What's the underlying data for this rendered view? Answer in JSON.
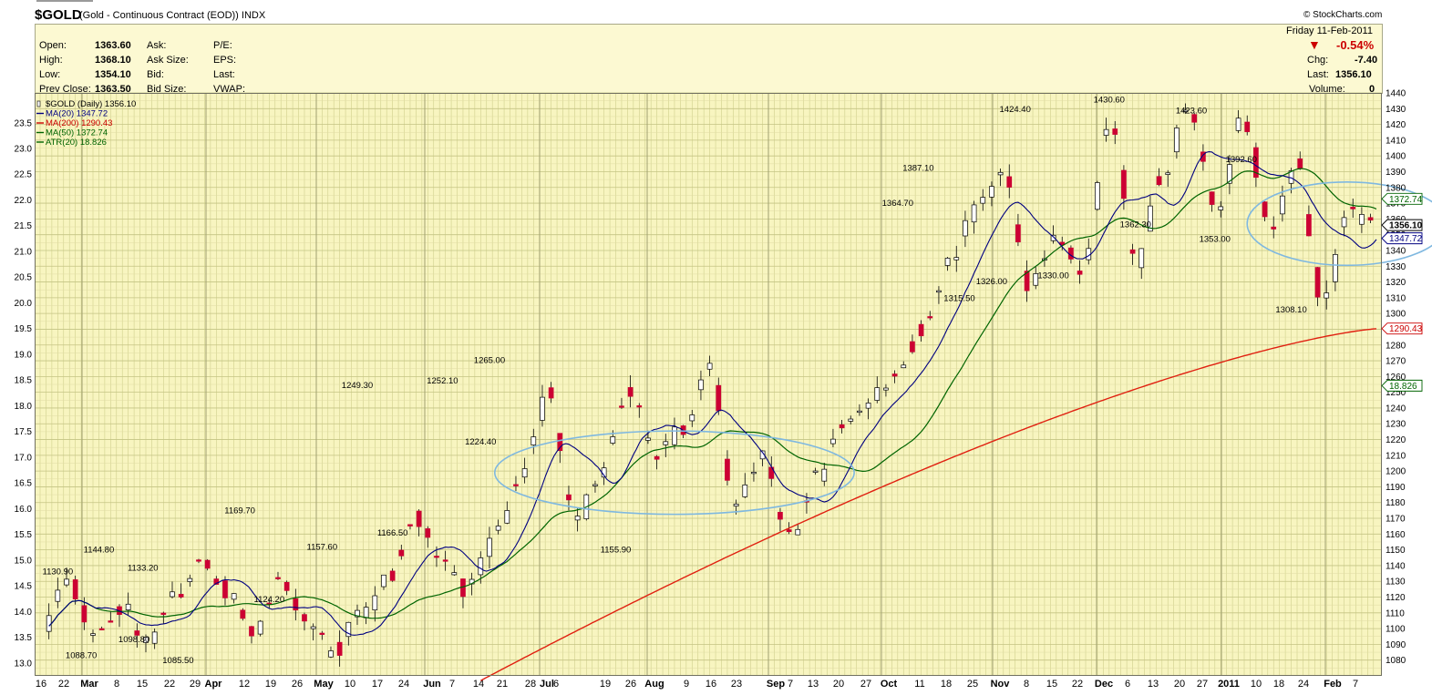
{
  "header": {
    "symbol": "$GOLD",
    "description": "(Gold - Continuous Contract (EOD))",
    "exchange": "INDX",
    "credit": "© StockCharts.com",
    "date": "Friday  11-Feb-2011",
    "change_pct": "-0.54%",
    "quote_labels": {
      "open": "Open:",
      "high": "High:",
      "low": "Low:",
      "prev_close": "Prev Close:",
      "ask": "Ask:",
      "ask_size": "Ask Size:",
      "bid": "Bid:",
      "bid_size": "Bid Size:",
      "pe": "P/E:",
      "eps": "EPS:",
      "last": "Last:",
      "vwap": "VWAP:",
      "chg": "Chg:",
      "last_right": "Last:",
      "volume": "Volume:"
    },
    "quote_values": {
      "open": "1363.60",
      "high": "1368.10",
      "low": "1354.10",
      "prev_close": "1363.50",
      "chg": "-7.40",
      "last": "1356.10",
      "volume": "0"
    }
  },
  "legend": [
    {
      "text": "$GOLD (Daily) 1356.10",
      "color": "#000000",
      "swatch": "candle"
    },
    {
      "text": "MA(20) 1347.72",
      "color": "#000080",
      "swatch": "line"
    },
    {
      "text": "MA(200) 1290.43",
      "color": "#cc0000",
      "swatch": "line"
    },
    {
      "text": "MA(50) 1372.74",
      "color": "#006400",
      "swatch": "line"
    },
    {
      "text": "ATR(20) 18.826",
      "color": "#006400",
      "swatch": "line"
    }
  ],
  "colors": {
    "background": "#f8f5c0",
    "grid": "#cfcf8c",
    "up": "#ffffff",
    "down": "#cc0033",
    "ma20": "#000080",
    "ma50": "#006400",
    "ma200": "#e02010",
    "circle": "#7fb8e0"
  },
  "chart_data": {
    "type": "candlestick",
    "title": "$GOLD (Gold - Continuous Contract (EOD)) INDX",
    "period": "Daily",
    "yrange_right": [
      1070,
      1440
    ],
    "yrange_left": [
      12.75,
      24.08
    ],
    "right_ticks": [
      1080,
      1090,
      1100,
      1110,
      1120,
      1130,
      1140,
      1150,
      1160,
      1170,
      1180,
      1190,
      1200,
      1210,
      1220,
      1230,
      1240,
      1250,
      1260,
      1270,
      1280,
      1290,
      1300,
      1310,
      1320,
      1330,
      1340,
      1350,
      1360,
      1370,
      1380,
      1390,
      1400,
      1410,
      1420,
      1430,
      1440
    ],
    "left_ticks": [
      "13.0",
      "13.5",
      "14.0",
      "14.5",
      "15.0",
      "15.5",
      "16.0",
      "16.5",
      "17.0",
      "17.5",
      "18.0",
      "18.5",
      "19.0",
      "19.5",
      "20.0",
      "20.5",
      "21.0",
      "21.5",
      "22.0",
      "22.5",
      "23.0",
      "23.5"
    ],
    "x_labels": [
      "16",
      "22",
      "Mar",
      "8",
      "15",
      "22",
      "29",
      "Apr",
      "12",
      "19",
      "26",
      "May",
      "10",
      "17",
      "24",
      "Jun",
      "7",
      "14",
      "21",
      "28",
      "Jul",
      "6",
      "19",
      "26",
      "Aug",
      "9",
      "16",
      "23",
      "Sep",
      "7",
      "13",
      "20",
      "27",
      "Oct",
      "11",
      "18",
      "25",
      "Nov",
      "8",
      "15",
      "22",
      "Dec",
      "6",
      "13",
      "20",
      "27",
      "2011",
      "10",
      "18",
      "24",
      "Feb",
      "7"
    ],
    "bold_x_labels": [
      "Mar",
      "Apr",
      "May",
      "Jun",
      "Jul",
      "Aug",
      "Sep",
      "Oct",
      "Nov",
      "Dec",
      "2011",
      "Feb"
    ],
    "price_path": [
      1100,
      1130.9,
      1095,
      1115,
      1088.7,
      1120,
      1144.8,
      1125,
      1098.8,
      1133.2,
      1100,
      1085.5,
      1110,
      1130,
      1169.7,
      1140,
      1124.2,
      1157.6,
      1200,
      1249.3,
      1166.5,
      1200,
      1252.1,
      1210,
      1224.4,
      1265,
      1180,
      1210,
      1155.9,
      1195,
      1230,
      1245,
      1260,
      1290,
      1330,
      1364.7,
      1387.1,
      1315.5,
      1350,
      1326,
      1424.4,
      1330,
      1390,
      1430.6,
      1362.3,
      1423.6,
      1353,
      1392.6,
      1308.1,
      1363.6,
      1356.1
    ],
    "annotations": [
      {
        "x_day": 6,
        "price": 1130.9,
        "text": "1130.90",
        "pos": "above"
      },
      {
        "x_day": 14,
        "price": 1088.7,
        "text": "1088.70",
        "pos": "below"
      },
      {
        "x_day": 20,
        "price": 1144.8,
        "text": "1144.80",
        "pos": "above"
      },
      {
        "x_day": 32,
        "price": 1098.8,
        "text": "1098.80",
        "pos": "below"
      },
      {
        "x_day": 35,
        "price": 1133.2,
        "text": "1133.20",
        "pos": "above"
      },
      {
        "x_day": 47,
        "price": 1085.5,
        "text": "1085.50",
        "pos": "below"
      },
      {
        "x_day": 68,
        "price": 1169.7,
        "text": "1169.70",
        "pos": "above"
      },
      {
        "x_day": 78,
        "price": 1124.2,
        "text": "1124.20",
        "pos": "below"
      },
      {
        "x_day": 96,
        "price": 1157.6,
        "text": "1157.60",
        "pos": "below"
      },
      {
        "x_day": 108,
        "price": 1249.3,
        "text": "1249.30",
        "pos": "above"
      },
      {
        "x_day": 120,
        "price": 1166.5,
        "text": "1166.50",
        "pos": "below"
      },
      {
        "x_day": 137,
        "price": 1252.1,
        "text": "1252.10",
        "pos": "above"
      },
      {
        "x_day": 150,
        "price": 1224.4,
        "text": "1224.40",
        "pos": "below"
      },
      {
        "x_day": 153,
        "price": 1265.0,
        "text": "1265.00",
        "pos": "above"
      },
      {
        "x_day": 196,
        "price": 1155.9,
        "text": "1155.90",
        "pos": "below"
      },
      {
        "x_day": 292,
        "price": 1364.7,
        "text": "1364.70",
        "pos": "above"
      },
      {
        "x_day": 299,
        "price": 1387.1,
        "text": "1387.10",
        "pos": "above"
      },
      {
        "x_day": 313,
        "price": 1315.5,
        "text": "1315.50",
        "pos": "below"
      },
      {
        "x_day": 324,
        "price": 1326.0,
        "text": "1326.00",
        "pos": "below"
      },
      {
        "x_day": 332,
        "price": 1424.4,
        "text": "1424.40",
        "pos": "above"
      },
      {
        "x_day": 345,
        "price": 1330.0,
        "text": "1330.00",
        "pos": "below"
      },
      {
        "x_day": 364,
        "price": 1430.6,
        "text": "1430.60",
        "pos": "above"
      },
      {
        "x_day": 373,
        "price": 1362.3,
        "text": "1362.30",
        "pos": "below"
      },
      {
        "x_day": 392,
        "price": 1423.6,
        "text": "1423.60",
        "pos": "above"
      },
      {
        "x_day": 400,
        "price": 1353.0,
        "text": "1353.00",
        "pos": "below"
      },
      {
        "x_day": 409,
        "price": 1392.6,
        "text": "1392.60",
        "pos": "above"
      },
      {
        "x_day": 426,
        "price": 1308.1,
        "text": "1308.10",
        "pos": "below"
      }
    ],
    "right_badges": [
      {
        "text": "1372.74",
        "price": 1372.74,
        "color": "#006400"
      },
      {
        "text": "1356.10",
        "price": 1356.1,
        "color": "#000000",
        "bold": true
      },
      {
        "text": "1347.72",
        "price": 1347.72,
        "color": "#000080"
      },
      {
        "text": "1290.43",
        "price": 1290.43,
        "color": "#cc0000"
      },
      {
        "text": "18.826",
        "price": 1254.2,
        "color": "#006400"
      }
    ],
    "ellipses": [
      {
        "cx_day": 216,
        "cy_price": 1199,
        "rx_days": 18,
        "ry_price": 23
      },
      {
        "cx_day": 445,
        "cy_price": 1357,
        "rx_days": 10,
        "ry_price": 23
      }
    ]
  }
}
